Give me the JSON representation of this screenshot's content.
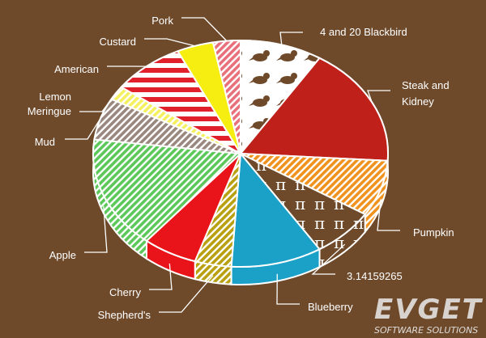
{
  "chart_data": {
    "type": "pie",
    "title": "",
    "slices": [
      {
        "label": "4 and 20 Blackbird",
        "value": 9,
        "color": "#ffffff",
        "pattern": "birds"
      },
      {
        "label": "Steak and Kidney",
        "value": 17,
        "color": "#c0201a",
        "pattern": "solid"
      },
      {
        "label": "Pumpkin",
        "value": 8,
        "color": "#f0921e",
        "pattern": "stripes"
      },
      {
        "label": "3.14159265",
        "value": 7,
        "color": "#6e4a2b",
        "pattern": "pi"
      },
      {
        "label": "Blueberry",
        "value": 10,
        "color": "#1ba0c8",
        "pattern": "solid"
      },
      {
        "label": "Shepherd's",
        "value": 4,
        "color": "#b8a010",
        "pattern": "stripes"
      },
      {
        "label": "Cherry",
        "value": 6,
        "color": "#e8141a",
        "pattern": "solid"
      },
      {
        "label": "Apple",
        "value": 16,
        "color": "#5cc85a",
        "pattern": "stripes"
      },
      {
        "label": "Mud",
        "value": 6,
        "color": "#9a8880",
        "pattern": "stripes"
      },
      {
        "label": "Lemon Meringue",
        "value": 2,
        "color": "#f4f060",
        "pattern": "stripes"
      },
      {
        "label": "American",
        "value": 8,
        "color": "#e0202a",
        "pattern": "flag"
      },
      {
        "label": "Custard",
        "value": 4,
        "color": "#f6ee10",
        "pattern": "solid"
      },
      {
        "label": "Pork",
        "value": 3,
        "color": "#e8707a",
        "pattern": "stripes"
      }
    ],
    "legend": "none",
    "data_labels": "outside with leader lines"
  },
  "watermark": {
    "title": "EVGET",
    "subtitle": "SOFTWARE SOLUTIONS"
  }
}
